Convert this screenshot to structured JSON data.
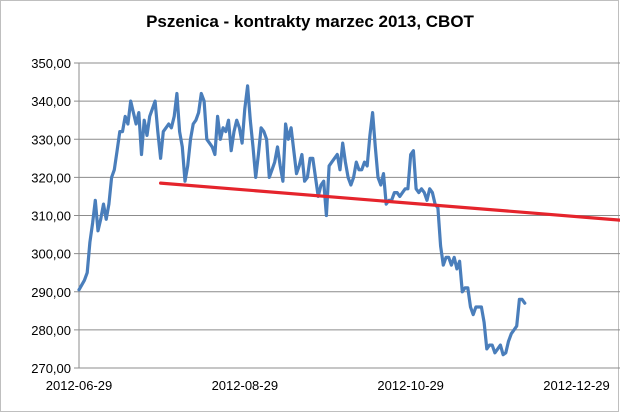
{
  "chart_data": {
    "type": "line",
    "title": "Pszenica - kontrakty marzec 2013, CBOT",
    "xlabel": "",
    "ylabel": "",
    "ylim": [
      270,
      350
    ],
    "y_ticks": [
      "350,00",
      "340,00",
      "330,00",
      "320,00",
      "310,00",
      "300,00",
      "290,00",
      "280,00",
      "270,00"
    ],
    "y_tick_values": [
      350,
      340,
      330,
      320,
      310,
      300,
      290,
      280,
      270
    ],
    "x_ticks": [
      "2012-06-29",
      "2012-08-29",
      "2012-10-29",
      "2012-12-29"
    ],
    "x_tick_days": [
      0,
      61,
      122,
      183
    ],
    "x_range_days": [
      0,
      199
    ],
    "grid": true,
    "legend": "none",
    "colors": {
      "price": "#4a7ebb",
      "trend": "#e5242c",
      "grid": "#8c8c8c"
    },
    "series": [
      {
        "values": [
          [
            0,
            290.5
          ],
          [
            2,
            293
          ],
          [
            3,
            295
          ],
          [
            4,
            303
          ],
          [
            5,
            308
          ],
          [
            6,
            314
          ],
          [
            7,
            306
          ],
          [
            8,
            309
          ],
          [
            9,
            313
          ],
          [
            10,
            309
          ],
          [
            11,
            313
          ],
          [
            12,
            320
          ],
          [
            13,
            322
          ],
          [
            14,
            327
          ],
          [
            15,
            332
          ],
          [
            16,
            332
          ],
          [
            17,
            336
          ],
          [
            18,
            334
          ],
          [
            19,
            340
          ],
          [
            20,
            337
          ],
          [
            21,
            334
          ],
          [
            22,
            337
          ],
          [
            23,
            326
          ],
          [
            24,
            335
          ],
          [
            25,
            331
          ],
          [
            26,
            336
          ],
          [
            27,
            338
          ],
          [
            28,
            340
          ],
          [
            29,
            332
          ],
          [
            30,
            325
          ],
          [
            31,
            332
          ],
          [
            32,
            333
          ],
          [
            33,
            334
          ],
          [
            34,
            333
          ],
          [
            35,
            336
          ],
          [
            36,
            342
          ],
          [
            37,
            332
          ],
          [
            38,
            328
          ],
          [
            39,
            319
          ],
          [
            40,
            323
          ],
          [
            41,
            330
          ],
          [
            42,
            334
          ],
          [
            43,
            335
          ],
          [
            44,
            337
          ],
          [
            45,
            342
          ],
          [
            46,
            340
          ],
          [
            47,
            330
          ],
          [
            48,
            329
          ],
          [
            49,
            328
          ],
          [
            50,
            326
          ],
          [
            51,
            336
          ],
          [
            52,
            330
          ],
          [
            53,
            333
          ],
          [
            54,
            332
          ],
          [
            55,
            335
          ],
          [
            56,
            327
          ],
          [
            57,
            332
          ],
          [
            58,
            335
          ],
          [
            59,
            333
          ],
          [
            60,
            329
          ],
          [
            61,
            338
          ],
          [
            62,
            344
          ],
          [
            63,
            335
          ],
          [
            64,
            328
          ],
          [
            65,
            320
          ],
          [
            66,
            326
          ],
          [
            67,
            333
          ],
          [
            68,
            332
          ],
          [
            69,
            330
          ],
          [
            70,
            320
          ],
          [
            71,
            322
          ],
          [
            72,
            324
          ],
          [
            73,
            328
          ],
          [
            74,
            323
          ],
          [
            75,
            319
          ],
          [
            76,
            334
          ],
          [
            77,
            330
          ],
          [
            78,
            333
          ],
          [
            79,
            327
          ],
          [
            80,
            321
          ],
          [
            81,
            323
          ],
          [
            82,
            326
          ],
          [
            83,
            319
          ],
          [
            84,
            320
          ],
          [
            85,
            325
          ],
          [
            86,
            325
          ],
          [
            87,
            320
          ],
          [
            88,
            315
          ],
          [
            89,
            318
          ],
          [
            90,
            319
          ],
          [
            91,
            310
          ],
          [
            92,
            323
          ],
          [
            93,
            324
          ],
          [
            94,
            325
          ],
          [
            95,
            326
          ],
          [
            96,
            322
          ],
          [
            97,
            329
          ],
          [
            98,
            324
          ],
          [
            99,
            320
          ],
          [
            100,
            318
          ],
          [
            101,
            320
          ],
          [
            102,
            324
          ],
          [
            103,
            322
          ],
          [
            104,
            322
          ],
          [
            105,
            324
          ],
          [
            106,
            323
          ],
          [
            107,
            331
          ],
          [
            108,
            337
          ],
          [
            109,
            328
          ],
          [
            110,
            320
          ],
          [
            111,
            318
          ],
          [
            112,
            321
          ],
          [
            113,
            313
          ],
          [
            114,
            314
          ],
          [
            115,
            314
          ],
          [
            116,
            316
          ],
          [
            117,
            316
          ],
          [
            118,
            315
          ],
          [
            119,
            316
          ],
          [
            120,
            317
          ],
          [
            121,
            317
          ],
          [
            122,
            326
          ],
          [
            123,
            327
          ],
          [
            124,
            317
          ],
          [
            125,
            316
          ],
          [
            126,
            317
          ],
          [
            127,
            316
          ],
          [
            128,
            314
          ],
          [
            129,
            317
          ],
          [
            130,
            316
          ],
          [
            131,
            313
          ],
          [
            132,
            312
          ],
          [
            133,
            302
          ],
          [
            134,
            297
          ],
          [
            135,
            299
          ],
          [
            136,
            299
          ],
          [
            137,
            297
          ],
          [
            138,
            299
          ],
          [
            139,
            296
          ],
          [
            140,
            298
          ],
          [
            141,
            290
          ],
          [
            142,
            291
          ],
          [
            143,
            291
          ],
          [
            144,
            286
          ],
          [
            145,
            284
          ],
          [
            146,
            286
          ],
          [
            147,
            286
          ],
          [
            148,
            286
          ],
          [
            149,
            282
          ],
          [
            150,
            275
          ],
          [
            151,
            276
          ],
          [
            152,
            276
          ],
          [
            153,
            274
          ],
          [
            154,
            275
          ],
          [
            155,
            276
          ],
          [
            156,
            273.5
          ],
          [
            157,
            274
          ],
          [
            158,
            277
          ],
          [
            159,
            279
          ],
          [
            160,
            280
          ],
          [
            161,
            281
          ],
          [
            162,
            288
          ],
          [
            163,
            288
          ],
          [
            164,
            287
          ]
        ]
      },
      {
        "values": [
          [
            30,
            318.5
          ],
          [
            199,
            308.8
          ]
        ]
      }
    ]
  }
}
